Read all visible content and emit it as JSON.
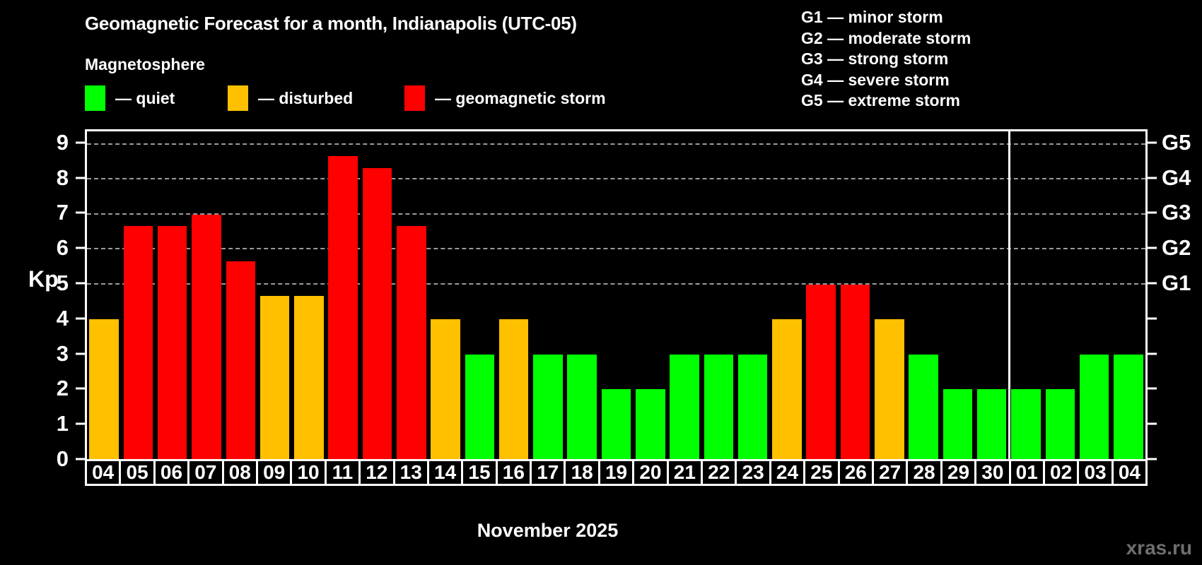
{
  "header": {
    "title": "Geomagnetic Forecast for a month, Indianapolis (UTC-05)",
    "subtitle": "Magnetosphere"
  },
  "legend": {
    "items": [
      {
        "name": "quiet",
        "label": "— quiet",
        "color": "#00ff00"
      },
      {
        "name": "disturbed",
        "label": "— disturbed",
        "color": "#ffc000"
      },
      {
        "name": "storm",
        "label": "— geomagnetic storm",
        "color": "#ff0000"
      }
    ]
  },
  "g_legend": {
    "items": [
      "G1 — minor storm",
      "G2 — moderate storm",
      "G3 — strong storm",
      "G4 — severe storm",
      "G5 — extreme storm"
    ]
  },
  "chart_data": {
    "type": "bar",
    "title": "Geomagnetic Forecast for a month, Indianapolis (UTC-05)",
    "categories": [
      "04",
      "05",
      "06",
      "07",
      "08",
      "09",
      "10",
      "11",
      "12",
      "13",
      "14",
      "15",
      "16",
      "17",
      "18",
      "19",
      "20",
      "21",
      "22",
      "23",
      "24",
      "25",
      "26",
      "27",
      "28",
      "29",
      "30",
      "01",
      "02",
      "03",
      "04"
    ],
    "values": [
      4,
      6.67,
      6.67,
      7,
      5.67,
      4.67,
      4.67,
      8.67,
      8.33,
      6.67,
      4,
      3,
      4,
      3,
      3,
      2,
      2,
      3,
      3,
      3,
      4,
      5,
      5,
      4,
      3,
      2,
      2,
      2,
      2,
      3,
      3
    ],
    "statuses": [
      "disturbed",
      "storm",
      "storm",
      "storm",
      "storm",
      "disturbed",
      "disturbed",
      "storm",
      "storm",
      "storm",
      "disturbed",
      "quiet",
      "disturbed",
      "quiet",
      "quiet",
      "quiet",
      "quiet",
      "quiet",
      "quiet",
      "quiet",
      "disturbed",
      "storm",
      "storm",
      "disturbed",
      "quiet",
      "quiet",
      "quiet",
      "quiet",
      "quiet",
      "quiet",
      "quiet"
    ],
    "status_colors": {
      "quiet": "#00ff00",
      "disturbed": "#ffc000",
      "storm": "#ff0000"
    },
    "ylabel": "Kp",
    "xlabel": "November 2025",
    "ylim": [
      0,
      9.38
    ],
    "y_ticks": [
      0,
      1,
      2,
      3,
      4,
      5,
      6,
      7,
      8,
      9
    ],
    "gridlines_at": [
      5,
      6,
      7,
      8,
      9
    ],
    "right_axis_labels": {
      "5": "G1",
      "6": "G2",
      "7": "G3",
      "8": "G4",
      "9": "G5"
    },
    "month_separator_before_index": 27,
    "grid": "horizontal dashed lines at storm levels G1–G5",
    "legend_position": "top"
  },
  "footer": {
    "watermark": "xras.ru"
  },
  "colors": {
    "background": "#000000",
    "axis": "#ffffff",
    "grid": "#9a9a9a",
    "text": "#ffffff",
    "watermark": "#6e6e6e"
  }
}
